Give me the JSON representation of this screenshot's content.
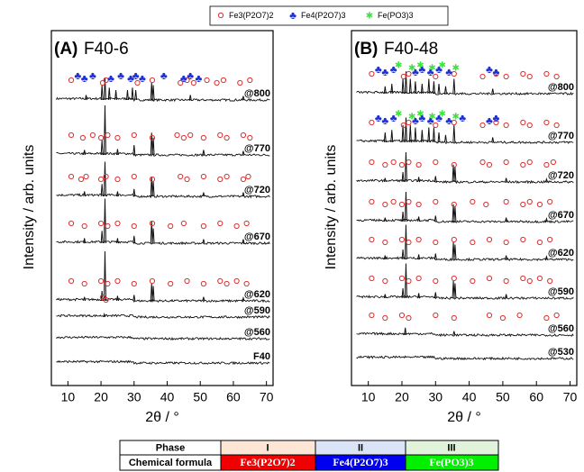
{
  "legend": [
    {
      "name": "Fe3(P2O7)2",
      "marker": "circle",
      "color": "#e03030"
    },
    {
      "name": "Fe4(P2O7)3",
      "marker": "club",
      "color": "#1c2fd6"
    },
    {
      "name": "Fe(PO3)3",
      "marker": "asterisk",
      "color": "#3ee23e"
    }
  ],
  "chart_data": [
    {
      "type": "line",
      "panel_label": "(A)",
      "title": "F40-6",
      "x_label": "2θ / °",
      "y_label": "Intensity / arb. units",
      "xlim": [
        5,
        72
      ],
      "xticks": [
        10,
        20,
        30,
        40,
        50,
        60,
        70
      ],
      "series": [
        {
          "name": "@800",
          "x": [
            15.5,
            20.3,
            21.2,
            22.5,
            24.5,
            28,
            29.5,
            30.5,
            35.3,
            35.8,
            47,
            63
          ],
          "values": [
            0.1,
            0.3,
            0.45,
            0.25,
            0.2,
            0.2,
            0.25,
            0.2,
            0.35,
            0.3,
            0.1,
            0.08
          ],
          "marks": [
            [
              11,
              20.5,
              21.5,
              31,
              35.5,
              44,
              46,
              48,
              52,
              55,
              57,
              62,
              65
            ],
            [
              13,
              15,
              17.5,
              23,
              26,
              29,
              30.5,
              32.5,
              39,
              45,
              47,
              49.5
            ],
            []
          ]
        },
        {
          "name": "@770",
          "x": [
            15,
            20.3,
            21.2,
            25,
            30,
            35.3,
            35.8,
            51,
            63
          ],
          "values": [
            0.1,
            0.3,
            1.0,
            0.12,
            0.2,
            0.45,
            0.35,
            0.1,
            0.08
          ],
          "marks": [
            [
              11,
              14.5,
              17.5,
              20,
              22,
              25,
              30,
              35.5,
              43,
              45,
              47,
              51,
              56,
              58,
              63,
              65
            ],
            [],
            []
          ]
        },
        {
          "name": "@720",
          "x": [
            15,
            20.3,
            21.2,
            25,
            30,
            35.3,
            35.8,
            51,
            63
          ],
          "values": [
            0.1,
            0.25,
            0.7,
            0.1,
            0.15,
            0.4,
            0.3,
            0.08,
            0.08
          ],
          "marks": [
            [
              11,
              14,
              15.5,
              20,
              21.5,
              25,
              30,
              35.5,
              44,
              46,
              51,
              56,
              58,
              63,
              64.5
            ],
            [],
            []
          ]
        },
        {
          "name": "@670",
          "x": [
            15,
            20.3,
            21.2,
            25,
            30,
            35.3,
            35.8,
            51,
            63
          ],
          "values": [
            0.1,
            0.25,
            0.9,
            0.1,
            0.15,
            0.45,
            0.3,
            0.08,
            0.08
          ],
          "marks": [
            [
              11,
              15,
              20,
              22,
              25,
              30,
              35.5,
              41,
              45,
              51,
              56,
              61,
              64
            ],
            [],
            []
          ]
        },
        {
          "name": "@620",
          "x": [
            15,
            20.3,
            21.2,
            25,
            30,
            35.3,
            35.8,
            51,
            63
          ],
          "values": [
            0.08,
            0.2,
            1.0,
            0.1,
            0.12,
            0.35,
            0.3,
            0.08,
            0.06
          ],
          "marks": [
            [
              11,
              15,
              20,
              22,
              25,
              30,
              35.5,
              41,
              46,
              51,
              56,
              58,
              61,
              64
            ],
            [],
            []
          ]
        },
        {
          "name": "@590",
          "x": [
            21
          ],
          "values": [
            0.06
          ],
          "marks": [
            [
              20.5,
              21.5
            ],
            [],
            []
          ]
        },
        {
          "name": "@560",
          "x": [],
          "values": [],
          "marks": [
            [],
            [],
            []
          ]
        },
        {
          "name": "F40",
          "x": [],
          "values": [],
          "marks": [
            [],
            [],
            []
          ]
        }
      ]
    },
    {
      "type": "line",
      "panel_label": "(B)",
      "title": "F40-48",
      "x_label": "2θ / °",
      "y_label": "Intensity / arb. units",
      "xlim": [
        5,
        72
      ],
      "xticks": [
        10,
        20,
        30,
        40,
        50,
        60,
        70
      ],
      "series": [
        {
          "name": "@800",
          "x": [
            15,
            17,
            20.3,
            21.2,
            22.5,
            24,
            26,
            28,
            29.5,
            31,
            33,
            35.5,
            47
          ],
          "values": [
            0.15,
            0.2,
            0.3,
            0.45,
            0.3,
            0.25,
            0.2,
            0.3,
            0.25,
            0.2,
            0.15,
            0.3,
            0.1
          ],
          "marks": [
            [
              11,
              20.5,
              22,
              30,
              35.5,
              44,
              48,
              51,
              56,
              58,
              63,
              66
            ],
            [
              13,
              15,
              17.5,
              24,
              26,
              28.5,
              31,
              34,
              46,
              48
            ],
            [
              19,
              23,
              25.5,
              29,
              32,
              36
            ]
          ]
        },
        {
          "name": "@770",
          "x": [
            15,
            17,
            20.3,
            21.2,
            22.5,
            24,
            26,
            28,
            29.5,
            31,
            33,
            35.5,
            47
          ],
          "values": [
            0.2,
            0.25,
            0.35,
            0.5,
            0.35,
            0.3,
            0.25,
            0.3,
            0.3,
            0.2,
            0.15,
            0.35,
            0.1
          ],
          "marks": [
            [
              11,
              20.5,
              22,
              30,
              35.5,
              44,
              48,
              51,
              56,
              58,
              63,
              66
            ],
            [
              13,
              15,
              17.5,
              24,
              26,
              28.5,
              31,
              34,
              38,
              46,
              48
            ],
            [
              19,
              23,
              25.5,
              29,
              32,
              36
            ]
          ]
        },
        {
          "name": "@720",
          "x": [
            15,
            20.3,
            21.2,
            25,
            30,
            35.3,
            35.8,
            51,
            63
          ],
          "values": [
            0.08,
            0.2,
            0.6,
            0.1,
            0.12,
            0.35,
            0.3,
            0.08,
            0.06
          ],
          "marks": [
            [
              11,
              15,
              17.5,
              20,
              22,
              25,
              30,
              35.5,
              44,
              46,
              51,
              56,
              58,
              63,
              65
            ],
            [],
            []
          ]
        },
        {
          "name": "@670",
          "x": [
            15,
            20.3,
            21.2,
            25,
            30,
            35.3,
            35.8,
            51,
            63
          ],
          "values": [
            0.08,
            0.2,
            0.6,
            0.1,
            0.12,
            0.35,
            0.3,
            0.08,
            0.06
          ],
          "marks": [
            [
              11,
              15,
              17.5,
              20,
              22,
              25,
              30,
              35.5,
              41,
              45,
              51,
              56,
              58,
              61,
              64
            ],
            [],
            []
          ]
        },
        {
          "name": "@620",
          "x": [
            15,
            20.3,
            21.2,
            25,
            30,
            35.3,
            35.8,
            51,
            63
          ],
          "values": [
            0.08,
            0.2,
            0.7,
            0.1,
            0.12,
            0.35,
            0.3,
            0.08,
            0.06
          ],
          "marks": [
            [
              11,
              15,
              20,
              22,
              25,
              30,
              35.5,
              41,
              46,
              51,
              56,
              61,
              64
            ],
            [],
            []
          ]
        },
        {
          "name": "@590",
          "x": [
            15,
            20.3,
            21.2,
            25,
            30,
            35.3,
            35.8,
            51
          ],
          "values": [
            0.08,
            0.2,
            0.7,
            0.1,
            0.12,
            0.35,
            0.3,
            0.08
          ],
          "marks": [
            [
              11,
              15,
              20,
              22,
              25,
              30,
              35.5,
              41,
              46,
              51,
              56,
              58,
              61,
              64
            ],
            [],
            []
          ]
        },
        {
          "name": "@560",
          "x": [
            21,
            35.5
          ],
          "values": [
            0.15,
            0.08
          ],
          "marks": [
            [
              11,
              15,
              20,
              22,
              30,
              35.5,
              46,
              50,
              55,
              63,
              66
            ],
            [],
            []
          ]
        },
        {
          "name": "@530",
          "x": [],
          "values": [],
          "marks": [
            [],
            [],
            []
          ]
        }
      ]
    }
  ],
  "table": {
    "header": [
      "Phase",
      "I",
      "II",
      "III"
    ],
    "rows": [
      [
        "Chemical formula",
        "Fe3(P2O7)2",
        "Fe4(P2O7)3",
        "Fe(PO3)3"
      ]
    ]
  }
}
